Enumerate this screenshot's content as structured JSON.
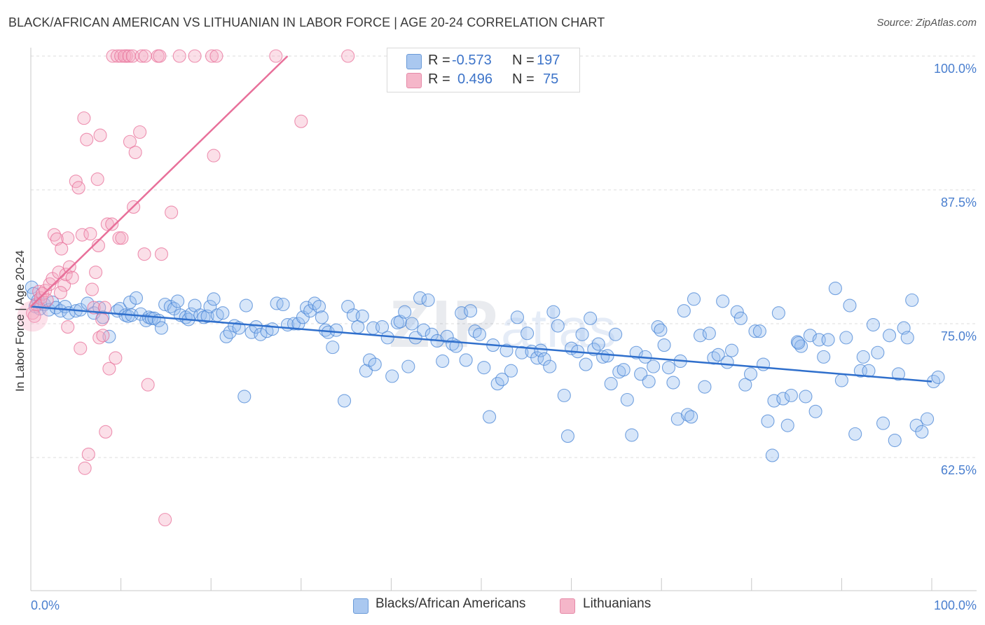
{
  "header": {
    "title": "BLACK/AFRICAN AMERICAN VS LITHUANIAN IN LABOR FORCE | AGE 20-24 CORRELATION CHART",
    "source": "Source: ZipAtlas.com"
  },
  "legend": {
    "rows": [
      {
        "r_label": "R =",
        "r_value": "-0.573",
        "n_label": "N =",
        "n_value": "197",
        "color": "#aac8f0"
      },
      {
        "r_label": "R =",
        "r_value": "0.496",
        "n_label": "N =",
        "n_value": "75",
        "color": "#f5b6c9"
      }
    ]
  },
  "bottom_legend": {
    "items": [
      {
        "label": "Blacks/African Americans",
        "color": "#aac8f0"
      },
      {
        "label": "Lithuanians",
        "color": "#f5b6c9"
      }
    ]
  },
  "colors": {
    "blue": "#4a86d6",
    "blue_fill": "rgba(150,190,240,0.38)",
    "pink": "#e8709a",
    "pink_fill": "rgba(245,170,195,0.38)",
    "tick_text": "#4a7fcf"
  },
  "chart_data": {
    "type": "scatter",
    "title": "BLACK/AFRICAN AMERICAN VS LITHUANIAN IN LABOR FORCE | AGE 20-24 CORRELATION CHART",
    "xlabel": "",
    "ylabel": "In Labor Force | Age 20-24",
    "xlim": [
      0,
      100
    ],
    "ylim": [
      50,
      100
    ],
    "x_tick_labels": [
      "0.0%",
      "100.0%"
    ],
    "y_ticks": [
      62.5,
      75.0,
      87.5,
      100.0
    ],
    "y_tick_labels": [
      "62.5%",
      "75.0%",
      "87.5%",
      "100.0%"
    ],
    "grid": true,
    "series": [
      {
        "name": "Blacks/African Americans",
        "r": -0.573,
        "n": 197,
        "trend": {
          "x": [
            0,
            100
          ],
          "y": [
            76.6,
            69.6
          ]
        },
        "points": [
          [
            0.1,
            78.4
          ],
          [
            0.3,
            77.8
          ],
          [
            0.5,
            76.6
          ],
          [
            0.8,
            77.2
          ],
          [
            1.0,
            76.4
          ],
          [
            1.5,
            76.8
          ],
          [
            2.0,
            76.3
          ],
          [
            2.4,
            77.0
          ],
          [
            2.8,
            76.5
          ],
          [
            3.3,
            76.2
          ],
          [
            3.8,
            76.6
          ],
          [
            4.2,
            76.0
          ],
          [
            5.0,
            76.2
          ],
          [
            5.5,
            76.3
          ],
          [
            6.3,
            76.9
          ],
          [
            7.0,
            76.0
          ],
          [
            7.6,
            76.5
          ],
          [
            8.0,
            75.6
          ],
          [
            8.7,
            73.8
          ],
          [
            9.6,
            76.2
          ],
          [
            9.9,
            76.4
          ],
          [
            10.5,
            75.8
          ],
          [
            10.8,
            75.7
          ],
          [
            11.0,
            77.0
          ],
          [
            11.2,
            75.8
          ],
          [
            11.7,
            77.4
          ],
          [
            12.2,
            75.9
          ],
          [
            12.8,
            75.3
          ],
          [
            13.1,
            75.6
          ],
          [
            13.4,
            75.5
          ],
          [
            13.7,
            75.5
          ],
          [
            14.2,
            75.3
          ],
          [
            14.5,
            74.6
          ],
          [
            14.9,
            76.8
          ],
          [
            15.5,
            76.6
          ],
          [
            15.9,
            76.4
          ],
          [
            16.3,
            77.1
          ],
          [
            16.6,
            75.8
          ],
          [
            17.2,
            75.6
          ],
          [
            17.5,
            75.4
          ],
          [
            17.8,
            75.9
          ],
          [
            18.2,
            76.7
          ],
          [
            18.8,
            75.8
          ],
          [
            19.2,
            75.6
          ],
          [
            19.6,
            75.7
          ],
          [
            19.9,
            76.6
          ],
          [
            20.3,
            77.3
          ],
          [
            20.7,
            75.8
          ],
          [
            21.3,
            76.0
          ],
          [
            21.7,
            73.8
          ],
          [
            22.1,
            74.2
          ],
          [
            22.6,
            74.8
          ],
          [
            23.1,
            74.6
          ],
          [
            23.7,
            68.2
          ],
          [
            23.9,
            76.7
          ],
          [
            24.5,
            74.2
          ],
          [
            25.0,
            74.7
          ],
          [
            25.5,
            74.0
          ],
          [
            26.2,
            74.3
          ],
          [
            26.8,
            74.5
          ],
          [
            27.3,
            76.9
          ],
          [
            28.0,
            76.8
          ],
          [
            28.5,
            74.9
          ],
          [
            29.2,
            75.0
          ],
          [
            29.7,
            75.0
          ],
          [
            30.2,
            75.6
          ],
          [
            30.6,
            76.5
          ],
          [
            31.0,
            76.2
          ],
          [
            31.5,
            76.9
          ],
          [
            32.0,
            76.6
          ],
          [
            32.3,
            75.6
          ],
          [
            32.7,
            74.4
          ],
          [
            33.0,
            74.2
          ],
          [
            33.5,
            72.8
          ],
          [
            33.9,
            74.4
          ],
          [
            34.8,
            67.8
          ],
          [
            35.2,
            76.6
          ],
          [
            35.8,
            75.8
          ],
          [
            36.3,
            74.7
          ],
          [
            36.8,
            75.7
          ],
          [
            37.2,
            70.6
          ],
          [
            37.6,
            71.6
          ],
          [
            38.2,
            71.2
          ],
          [
            38.0,
            74.6
          ],
          [
            39.0,
            74.7
          ],
          [
            39.6,
            73.7
          ],
          [
            40.1,
            70.1
          ],
          [
            40.7,
            75.1
          ],
          [
            41.0,
            75.2
          ],
          [
            41.5,
            76.1
          ],
          [
            41.9,
            71.0
          ],
          [
            42.3,
            75.0
          ],
          [
            42.7,
            73.7
          ],
          [
            43.2,
            77.4
          ],
          [
            43.6,
            74.4
          ],
          [
            44.1,
            77.2
          ],
          [
            44.5,
            74.0
          ],
          [
            45.1,
            73.4
          ],
          [
            45.7,
            71.5
          ],
          [
            46.2,
            73.8
          ],
          [
            46.8,
            73.1
          ],
          [
            47.2,
            72.9
          ],
          [
            47.8,
            76.0
          ],
          [
            48.3,
            71.6
          ],
          [
            48.8,
            76.2
          ],
          [
            49.3,
            74.3
          ],
          [
            49.8,
            74.0
          ],
          [
            50.3,
            70.9
          ],
          [
            50.9,
            66.3
          ],
          [
            51.3,
            73.0
          ],
          [
            51.8,
            69.4
          ],
          [
            52.3,
            69.8
          ],
          [
            52.8,
            72.5
          ],
          [
            53.3,
            70.6
          ],
          [
            54.0,
            75.6
          ],
          [
            54.5,
            72.3
          ],
          [
            55.1,
            74.1
          ],
          [
            55.6,
            72.4
          ],
          [
            56.2,
            71.8
          ],
          [
            56.6,
            72.5
          ],
          [
            57.0,
            71.7
          ],
          [
            57.6,
            71.0
          ],
          [
            58.0,
            76.1
          ],
          [
            58.5,
            74.8
          ],
          [
            59.2,
            68.3
          ],
          [
            59.6,
            64.5
          ],
          [
            60.0,
            72.7
          ],
          [
            60.7,
            72.4
          ],
          [
            61.2,
            74.0
          ],
          [
            61.6,
            71.2
          ],
          [
            62.1,
            75.5
          ],
          [
            62.5,
            72.6
          ],
          [
            63.0,
            73.1
          ],
          [
            63.5,
            71.9
          ],
          [
            64.0,
            72.0
          ],
          [
            64.4,
            69.4
          ],
          [
            64.9,
            74.0
          ],
          [
            65.3,
            70.5
          ],
          [
            65.8,
            70.7
          ],
          [
            66.2,
            67.9
          ],
          [
            66.7,
            64.6
          ],
          [
            67.2,
            72.3
          ],
          [
            67.7,
            70.3
          ],
          [
            68.2,
            71.9
          ],
          [
            68.6,
            69.6
          ],
          [
            69.1,
            71.0
          ],
          [
            69.6,
            74.7
          ],
          [
            69.9,
            74.4
          ],
          [
            70.3,
            73.0
          ],
          [
            70.8,
            70.9
          ],
          [
            71.3,
            69.5
          ],
          [
            71.8,
            66.1
          ],
          [
            72.1,
            71.5
          ],
          [
            72.5,
            76.2
          ],
          [
            72.9,
            66.5
          ],
          [
            73.3,
            66.3
          ],
          [
            73.6,
            77.3
          ],
          [
            74.3,
            73.9
          ],
          [
            74.8,
            69.1
          ],
          [
            75.3,
            74.1
          ],
          [
            75.8,
            71.8
          ],
          [
            76.3,
            72.1
          ],
          [
            76.8,
            77.1
          ],
          [
            77.3,
            71.4
          ],
          [
            77.8,
            72.5
          ],
          [
            78.4,
            76.1
          ],
          [
            78.8,
            75.5
          ],
          [
            79.3,
            69.3
          ],
          [
            79.9,
            70.3
          ],
          [
            80.4,
            74.3
          ],
          [
            80.9,
            74.3
          ],
          [
            81.3,
            71.2
          ],
          [
            81.8,
            65.9
          ],
          [
            82.3,
            62.7
          ],
          [
            82.5,
            67.8
          ],
          [
            83.0,
            76.0
          ],
          [
            83.5,
            68.0
          ],
          [
            84.0,
            65.5
          ],
          [
            84.4,
            68.3
          ],
          [
            85.1,
            73.3
          ],
          [
            85.5,
            72.9
          ],
          [
            86.0,
            68.2
          ],
          [
            86.5,
            73.9
          ],
          [
            87.1,
            66.8
          ],
          [
            87.5,
            73.5
          ],
          [
            88.0,
            71.9
          ],
          [
            88.5,
            73.5
          ],
          [
            89.3,
            78.3
          ],
          [
            90.0,
            69.7
          ],
          [
            90.5,
            73.7
          ],
          [
            90.9,
            76.7
          ],
          [
            91.5,
            64.7
          ],
          [
            92.1,
            70.6
          ],
          [
            92.4,
            71.9
          ],
          [
            93.0,
            70.6
          ],
          [
            93.5,
            74.9
          ],
          [
            94.0,
            72.3
          ],
          [
            94.6,
            65.7
          ],
          [
            95.3,
            73.9
          ],
          [
            95.9,
            64.1
          ],
          [
            96.3,
            70.3
          ],
          [
            96.9,
            74.6
          ],
          [
            97.3,
            73.7
          ],
          [
            97.8,
            77.2
          ],
          [
            98.3,
            65.5
          ],
          [
            98.9,
            64.9
          ],
          [
            99.5,
            66.1
          ],
          [
            100.2,
            69.6
          ],
          [
            100.7,
            70.0
          ],
          [
            85.2,
            73.2
          ]
        ]
      },
      {
        "name": "Lithuanians",
        "r": 0.496,
        "n": 75,
        "trend": {
          "x": [
            0,
            28.5
          ],
          "y": [
            76.6,
            100
          ]
        },
        "points": [
          [
            0.2,
            76.0
          ],
          [
            0.4,
            75.7
          ],
          [
            0.6,
            76.8
          ],
          [
            0.9,
            78.0
          ],
          [
            1.1,
            77.4
          ],
          [
            1.3,
            77.8
          ],
          [
            1.6,
            78.1
          ],
          [
            1.8,
            77.2
          ],
          [
            2.1,
            78.7
          ],
          [
            2.4,
            79.2
          ],
          [
            2.6,
            83.3
          ],
          [
            2.9,
            82.9
          ],
          [
            3.1,
            79.8
          ],
          [
            3.4,
            82.0
          ],
          [
            3.7,
            78.6
          ],
          [
            3.9,
            79.6
          ],
          [
            4.1,
            83.0
          ],
          [
            4.3,
            80.3
          ],
          [
            4.1,
            74.7
          ],
          [
            4.6,
            79.3
          ],
          [
            5.0,
            88.3
          ],
          [
            5.3,
            87.7
          ],
          [
            5.7,
            83.3
          ],
          [
            5.5,
            72.7
          ],
          [
            5.9,
            94.2
          ],
          [
            6.2,
            92.2
          ],
          [
            6.6,
            83.4
          ],
          [
            6.8,
            78.2
          ],
          [
            7.0,
            76.5
          ],
          [
            7.2,
            79.8
          ],
          [
            7.5,
            82.3
          ],
          [
            7.4,
            88.5
          ],
          [
            7.7,
            92.6
          ],
          [
            7.6,
            73.7
          ],
          [
            8.0,
            73.9
          ],
          [
            8.3,
            64.9
          ],
          [
            8.5,
            84.3
          ],
          [
            8.7,
            70.8
          ],
          [
            8.2,
            76.5
          ],
          [
            9.0,
            84.3
          ],
          [
            9.4,
            71.8
          ],
          [
            9.8,
            83.0
          ],
          [
            10.1,
            83.0
          ],
          [
            10.6,
            100
          ],
          [
            11.0,
            92.0
          ],
          [
            11.4,
            85.9
          ],
          [
            11.6,
            91.0
          ],
          [
            12.1,
            92.9
          ],
          [
            12.6,
            81.5
          ],
          [
            13.0,
            69.3
          ],
          [
            14.1,
            100
          ],
          [
            14.5,
            81.5
          ],
          [
            14.9,
            56.7
          ],
          [
            15.6,
            85.4
          ],
          [
            16.5,
            100
          ],
          [
            18.2,
            100
          ],
          [
            20.1,
            100
          ],
          [
            20.6,
            100
          ],
          [
            20.3,
            90.7
          ],
          [
            27.2,
            100
          ],
          [
            30.0,
            93.9
          ],
          [
            35.2,
            100
          ],
          [
            9.1,
            100
          ],
          [
            9.6,
            100
          ],
          [
            10.0,
            100
          ],
          [
            10.4,
            100
          ],
          [
            10.9,
            100
          ],
          [
            11.3,
            100
          ],
          [
            12.3,
            100
          ],
          [
            12.7,
            100
          ],
          [
            14.3,
            100
          ],
          [
            6.4,
            62.8
          ],
          [
            6.0,
            61.5
          ],
          [
            7.9,
            75.4
          ],
          [
            3.3,
            77.9
          ]
        ]
      }
    ]
  }
}
